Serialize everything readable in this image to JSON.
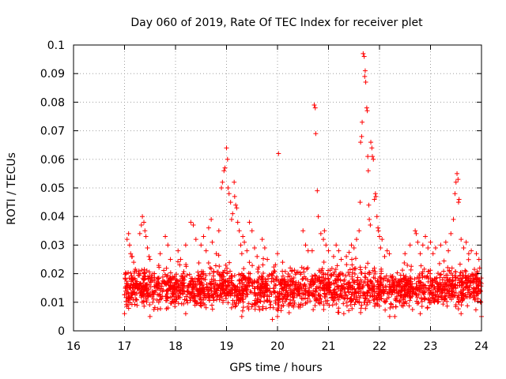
{
  "chart_data": {
    "type": "scatter",
    "title": "Day 060 of 2019, Rate Of TEC Index for receiver plet",
    "xlabel": "GPS time / hours",
    "ylabel": "ROTI / TECUs",
    "xlim": [
      16,
      24
    ],
    "ylim": [
      0,
      0.1
    ],
    "xticks": [
      "16",
      "17",
      "18",
      "19",
      "20",
      "21",
      "22",
      "23",
      "24"
    ],
    "yticks": [
      "0",
      "0.01",
      "0.02",
      "0.03",
      "0.04",
      "0.05",
      "0.06",
      "0.07",
      "0.08",
      "0.09",
      "0.1"
    ],
    "grid": true,
    "marker": "+",
    "color": "#ff0000",
    "series": [
      {
        "name": "ROTI",
        "background_band": {
          "x_start": 17.0,
          "x_end": 24.0,
          "y_low": 0.005,
          "y_high": 0.022,
          "points": 2200,
          "seed": 60
        },
        "points": [
          [
            17.05,
            0.032
          ],
          [
            17.08,
            0.034
          ],
          [
            17.1,
            0.03
          ],
          [
            17.12,
            0.027
          ],
          [
            17.15,
            0.026
          ],
          [
            17.18,
            0.024
          ],
          [
            17.3,
            0.034
          ],
          [
            17.33,
            0.037
          ],
          [
            17.35,
            0.04
          ],
          [
            17.38,
            0.038
          ],
          [
            17.4,
            0.035
          ],
          [
            17.42,
            0.033
          ],
          [
            17.45,
            0.029
          ],
          [
            17.48,
            0.026
          ],
          [
            17.5,
            0.025
          ],
          [
            17.7,
            0.027
          ],
          [
            17.8,
            0.033
          ],
          [
            17.85,
            0.03
          ],
          [
            17.9,
            0.025
          ],
          [
            18.05,
            0.028
          ],
          [
            18.1,
            0.025
          ],
          [
            18.2,
            0.03
          ],
          [
            18.3,
            0.038
          ],
          [
            18.35,
            0.037
          ],
          [
            18.4,
            0.032
          ],
          [
            18.5,
            0.03
          ],
          [
            18.55,
            0.033
          ],
          [
            18.6,
            0.028
          ],
          [
            18.65,
            0.036
          ],
          [
            18.7,
            0.039
          ],
          [
            18.72,
            0.031
          ],
          [
            18.8,
            0.027
          ],
          [
            18.85,
            0.035
          ],
          [
            18.9,
            0.05
          ],
          [
            18.92,
            0.052
          ],
          [
            18.95,
            0.056
          ],
          [
            18.97,
            0.057
          ],
          [
            19.0,
            0.064
          ],
          [
            19.02,
            0.06
          ],
          [
            19.03,
            0.05
          ],
          [
            19.05,
            0.048
          ],
          [
            19.08,
            0.045
          ],
          [
            19.1,
            0.039
          ],
          [
            19.12,
            0.041
          ],
          [
            19.15,
            0.052
          ],
          [
            19.16,
            0.047
          ],
          [
            19.18,
            0.044
          ],
          [
            19.2,
            0.043
          ],
          [
            19.22,
            0.038
          ],
          [
            19.25,
            0.035
          ],
          [
            19.28,
            0.03
          ],
          [
            19.3,
            0.027
          ],
          [
            19.32,
            0.033
          ],
          [
            19.35,
            0.031
          ],
          [
            19.4,
            0.028
          ],
          [
            19.45,
            0.038
          ],
          [
            19.5,
            0.035
          ],
          [
            19.55,
            0.029
          ],
          [
            19.6,
            0.026
          ],
          [
            19.7,
            0.032
          ],
          [
            19.75,
            0.029
          ],
          [
            19.8,
            0.025
          ],
          [
            20.02,
            0.062
          ],
          [
            20.0,
            0.027
          ],
          [
            20.1,
            0.024
          ],
          [
            20.25,
            0.022
          ],
          [
            20.5,
            0.035
          ],
          [
            20.55,
            0.03
          ],
          [
            20.6,
            0.028
          ],
          [
            20.68,
            0.028
          ],
          [
            20.72,
            0.079
          ],
          [
            20.74,
            0.078
          ],
          [
            20.75,
            0.069
          ],
          [
            20.78,
            0.049
          ],
          [
            20.8,
            0.04
          ],
          [
            20.85,
            0.034
          ],
          [
            20.9,
            0.032
          ],
          [
            20.92,
            0.035
          ],
          [
            20.95,
            0.03
          ],
          [
            21.0,
            0.028
          ],
          [
            21.1,
            0.026
          ],
          [
            21.15,
            0.03
          ],
          [
            21.2,
            0.028
          ],
          [
            21.25,
            0.025
          ],
          [
            21.35,
            0.026
          ],
          [
            21.45,
            0.03
          ],
          [
            21.5,
            0.029
          ],
          [
            21.55,
            0.032
          ],
          [
            21.6,
            0.035
          ],
          [
            21.62,
            0.045
          ],
          [
            21.63,
            0.066
          ],
          [
            21.65,
            0.068
          ],
          [
            21.66,
            0.073
          ],
          [
            21.68,
            0.097
          ],
          [
            21.7,
            0.096
          ],
          [
            21.71,
            0.089
          ],
          [
            21.72,
            0.091
          ],
          [
            21.73,
            0.087
          ],
          [
            21.75,
            0.078
          ],
          [
            21.76,
            0.077
          ],
          [
            21.77,
            0.061
          ],
          [
            21.78,
            0.056
          ],
          [
            21.79,
            0.044
          ],
          [
            21.8,
            0.039
          ],
          [
            21.82,
            0.037
          ],
          [
            21.83,
            0.066
          ],
          [
            21.85,
            0.064
          ],
          [
            21.86,
            0.061
          ],
          [
            21.88,
            0.06
          ],
          [
            21.9,
            0.046
          ],
          [
            21.92,
            0.048
          ],
          [
            21.93,
            0.047
          ],
          [
            21.95,
            0.04
          ],
          [
            21.97,
            0.036
          ],
          [
            21.98,
            0.035
          ],
          [
            22.0,
            0.033
          ],
          [
            22.02,
            0.029
          ],
          [
            22.05,
            0.032
          ],
          [
            22.1,
            0.026
          ],
          [
            22.15,
            0.028
          ],
          [
            22.5,
            0.027
          ],
          [
            22.6,
            0.03
          ],
          [
            22.7,
            0.035
          ],
          [
            22.72,
            0.034
          ],
          [
            22.75,
            0.031
          ],
          [
            22.8,
            0.027
          ],
          [
            22.85,
            0.03
          ],
          [
            22.9,
            0.033
          ],
          [
            22.95,
            0.029
          ],
          [
            23.0,
            0.031
          ],
          [
            23.05,
            0.027
          ],
          [
            23.1,
            0.029
          ],
          [
            23.2,
            0.03
          ],
          [
            23.3,
            0.031
          ],
          [
            23.35,
            0.028
          ],
          [
            23.4,
            0.034
          ],
          [
            23.45,
            0.039
          ],
          [
            23.48,
            0.048
          ],
          [
            23.5,
            0.052
          ],
          [
            23.52,
            0.055
          ],
          [
            23.54,
            0.053
          ],
          [
            23.55,
            0.045
          ],
          [
            23.56,
            0.046
          ],
          [
            23.6,
            0.032
          ],
          [
            23.65,
            0.029
          ],
          [
            23.7,
            0.031
          ],
          [
            23.75,
            0.027
          ],
          [
            23.8,
            0.028
          ],
          [
            23.9,
            0.027
          ],
          [
            23.95,
            0.025
          ],
          [
            17.0,
            0.006
          ],
          [
            17.5,
            0.005
          ],
          [
            18.2,
            0.006
          ],
          [
            19.3,
            0.005
          ],
          [
            19.9,
            0.004
          ],
          [
            20.0,
            0.005
          ],
          [
            21.3,
            0.006
          ],
          [
            22.2,
            0.005
          ],
          [
            22.3,
            0.005
          ],
          [
            22.8,
            0.006
          ],
          [
            23.6,
            0.006
          ],
          [
            24.0,
            0.005
          ]
        ]
      }
    ]
  }
}
